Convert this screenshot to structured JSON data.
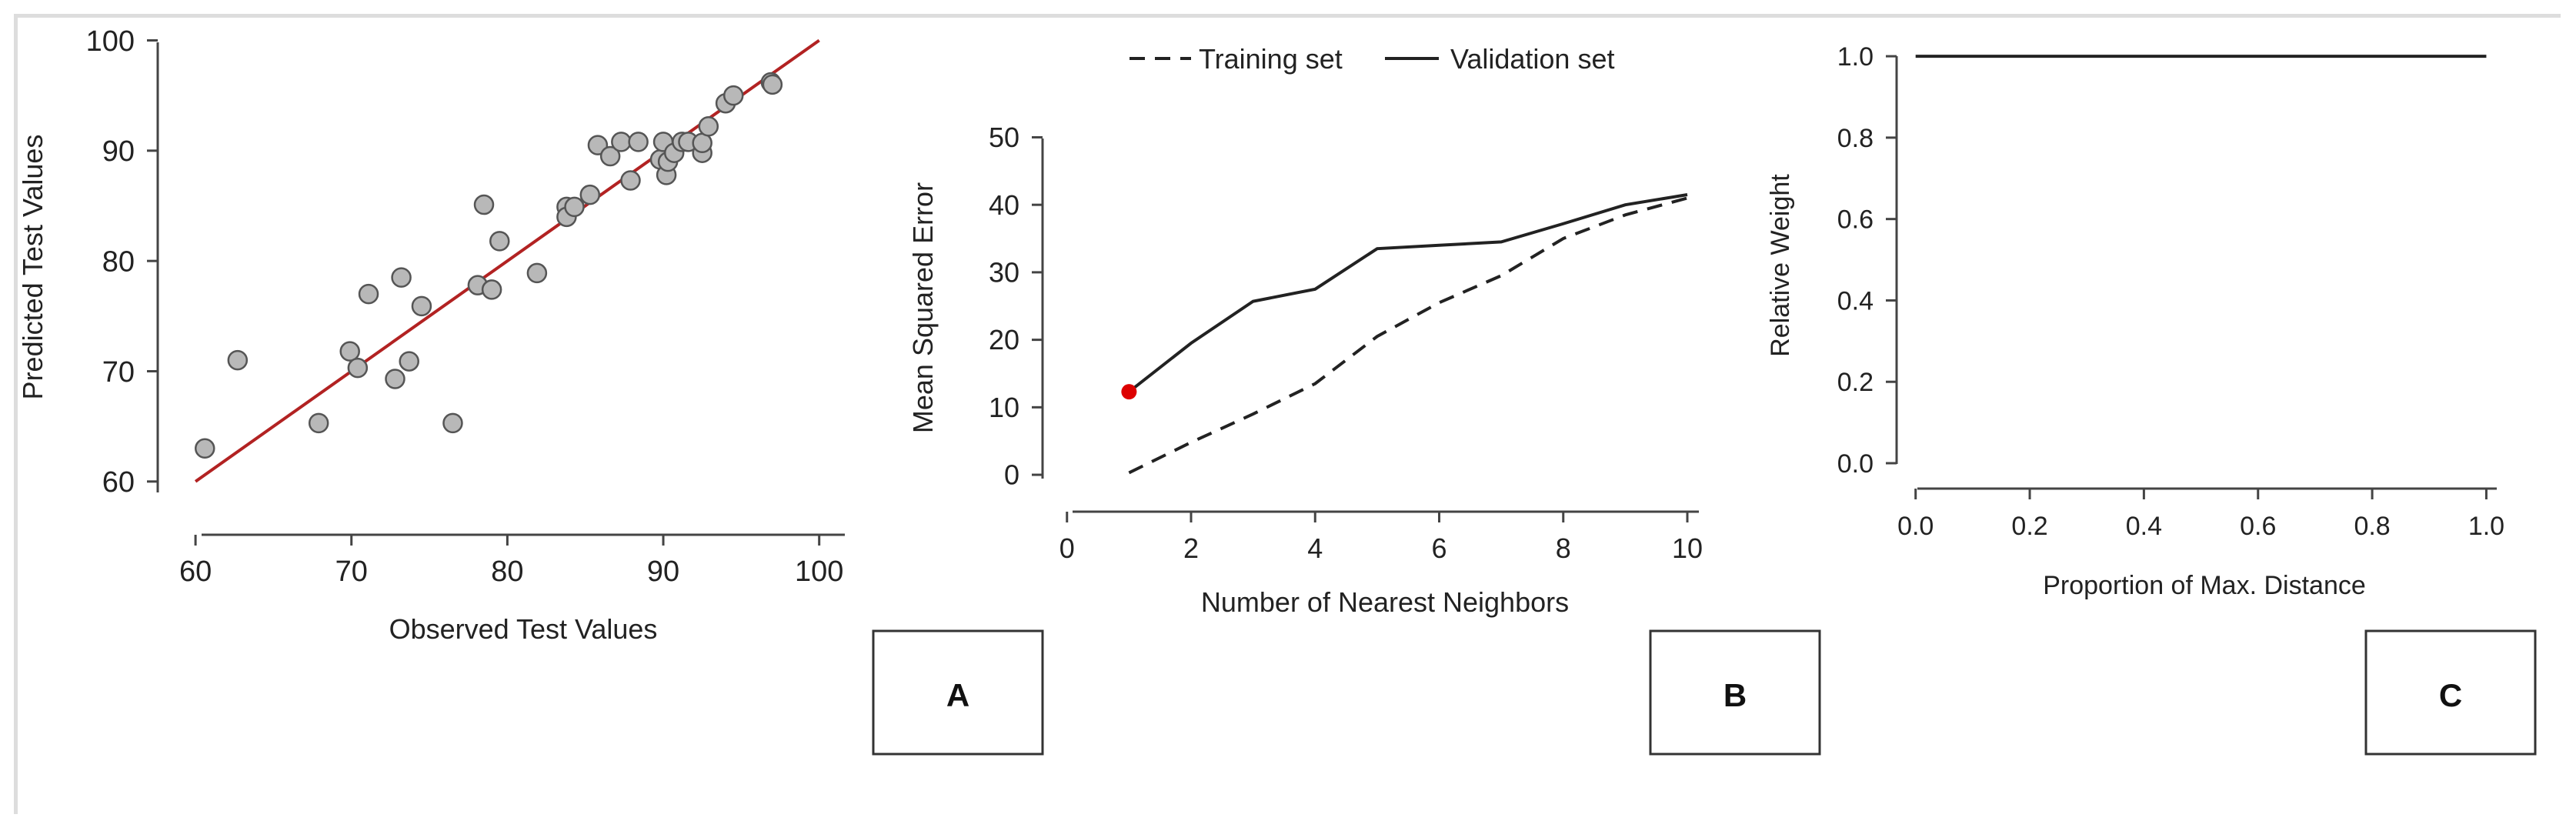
{
  "colors": {
    "axis": "#444444",
    "fit_line": "#b22222",
    "point_fill": "#b8b8b8",
    "point_stroke": "#555555",
    "line": "#222222",
    "highlight": "#dd0000"
  },
  "chart_data": [
    {
      "id": "A",
      "type": "scatter",
      "title": "",
      "xlabel": "Observed Test Values",
      "ylabel": "Predicted Test Values",
      "xlim": [
        60,
        100
      ],
      "ylim": [
        60,
        100
      ],
      "xticks": [
        60,
        70,
        80,
        90,
        100
      ],
      "yticks": [
        60,
        70,
        80,
        90,
        100
      ],
      "reference_line": [
        [
          60,
          60
        ],
        [
          100,
          100
        ]
      ],
      "points": [
        [
          60.6,
          63.0
        ],
        [
          62.7,
          71.0
        ],
        [
          67.9,
          65.3
        ],
        [
          69.9,
          71.8
        ],
        [
          70.4,
          70.3
        ],
        [
          71.1,
          77.0
        ],
        [
          72.8,
          69.3
        ],
        [
          73.2,
          78.5
        ],
        [
          73.7,
          70.9
        ],
        [
          74.5,
          75.9
        ],
        [
          76.5,
          65.3
        ],
        [
          78.1,
          77.8
        ],
        [
          78.5,
          85.1
        ],
        [
          79.0,
          77.4
        ],
        [
          79.5,
          81.8
        ],
        [
          81.9,
          78.9
        ],
        [
          83.8,
          84.9
        ],
        [
          83.8,
          84.0
        ],
        [
          84.3,
          84.9
        ],
        [
          85.3,
          86.0
        ],
        [
          85.8,
          90.5
        ],
        [
          86.6,
          89.5
        ],
        [
          87.3,
          90.8
        ],
        [
          87.9,
          87.3
        ],
        [
          88.4,
          90.8
        ],
        [
          89.8,
          89.2
        ],
        [
          90.0,
          90.8
        ],
        [
          90.2,
          87.8
        ],
        [
          90.3,
          89.0
        ],
        [
          90.7,
          89.8
        ],
        [
          91.2,
          90.8
        ],
        [
          91.6,
          90.8
        ],
        [
          92.5,
          89.8
        ],
        [
          92.5,
          90.7
        ],
        [
          92.9,
          92.2
        ],
        [
          94.0,
          94.3
        ],
        [
          94.5,
          95.0
        ],
        [
          96.9,
          96.2
        ],
        [
          97.0,
          96.0
        ]
      ]
    },
    {
      "id": "B",
      "type": "line",
      "title": "",
      "xlabel": "Number of Nearest Neighbors",
      "ylabel": "Mean Squared Error",
      "xlim": [
        0,
        10
      ],
      "ylim": [
        0,
        50
      ],
      "xticks": [
        0,
        2,
        4,
        6,
        8,
        10
      ],
      "yticks": [
        0,
        10,
        20,
        30,
        40,
        50
      ],
      "legend": {
        "position": "top",
        "entries": [
          "Training set",
          "Validation set"
        ]
      },
      "x": [
        1,
        2,
        3,
        4,
        5,
        6,
        7,
        8,
        9,
        10
      ],
      "series": [
        {
          "name": "Training set",
          "style": "dashed",
          "values": [
            0.3,
            4.8,
            9.0,
            13.5,
            20.5,
            25.5,
            29.5,
            35.0,
            38.5,
            41.0
          ]
        },
        {
          "name": "Validation set",
          "style": "solid",
          "values": [
            12.3,
            19.5,
            25.7,
            27.5,
            33.5,
            34.0,
            34.5,
            37.2,
            40.0,
            41.5
          ]
        }
      ],
      "highlight_point": [
        1,
        12.3
      ]
    },
    {
      "id": "C",
      "type": "line",
      "title": "",
      "xlabel": "Proportion of Max. Distance",
      "ylabel": "Relative Weight",
      "xlim": [
        0,
        1
      ],
      "ylim": [
        0,
        1
      ],
      "xticks": [
        "0.0",
        "0.2",
        "0.4",
        "0.6",
        "0.8",
        "1.0"
      ],
      "yticks": [
        "0.0",
        "0.2",
        "0.4",
        "0.6",
        "0.8",
        "1.0"
      ],
      "x": [
        0.0,
        1.0
      ],
      "series": [
        {
          "name": "weight",
          "style": "solid",
          "values": [
            1.0,
            1.0
          ]
        }
      ]
    }
  ],
  "panel_labels": [
    "A",
    "B",
    "C"
  ]
}
